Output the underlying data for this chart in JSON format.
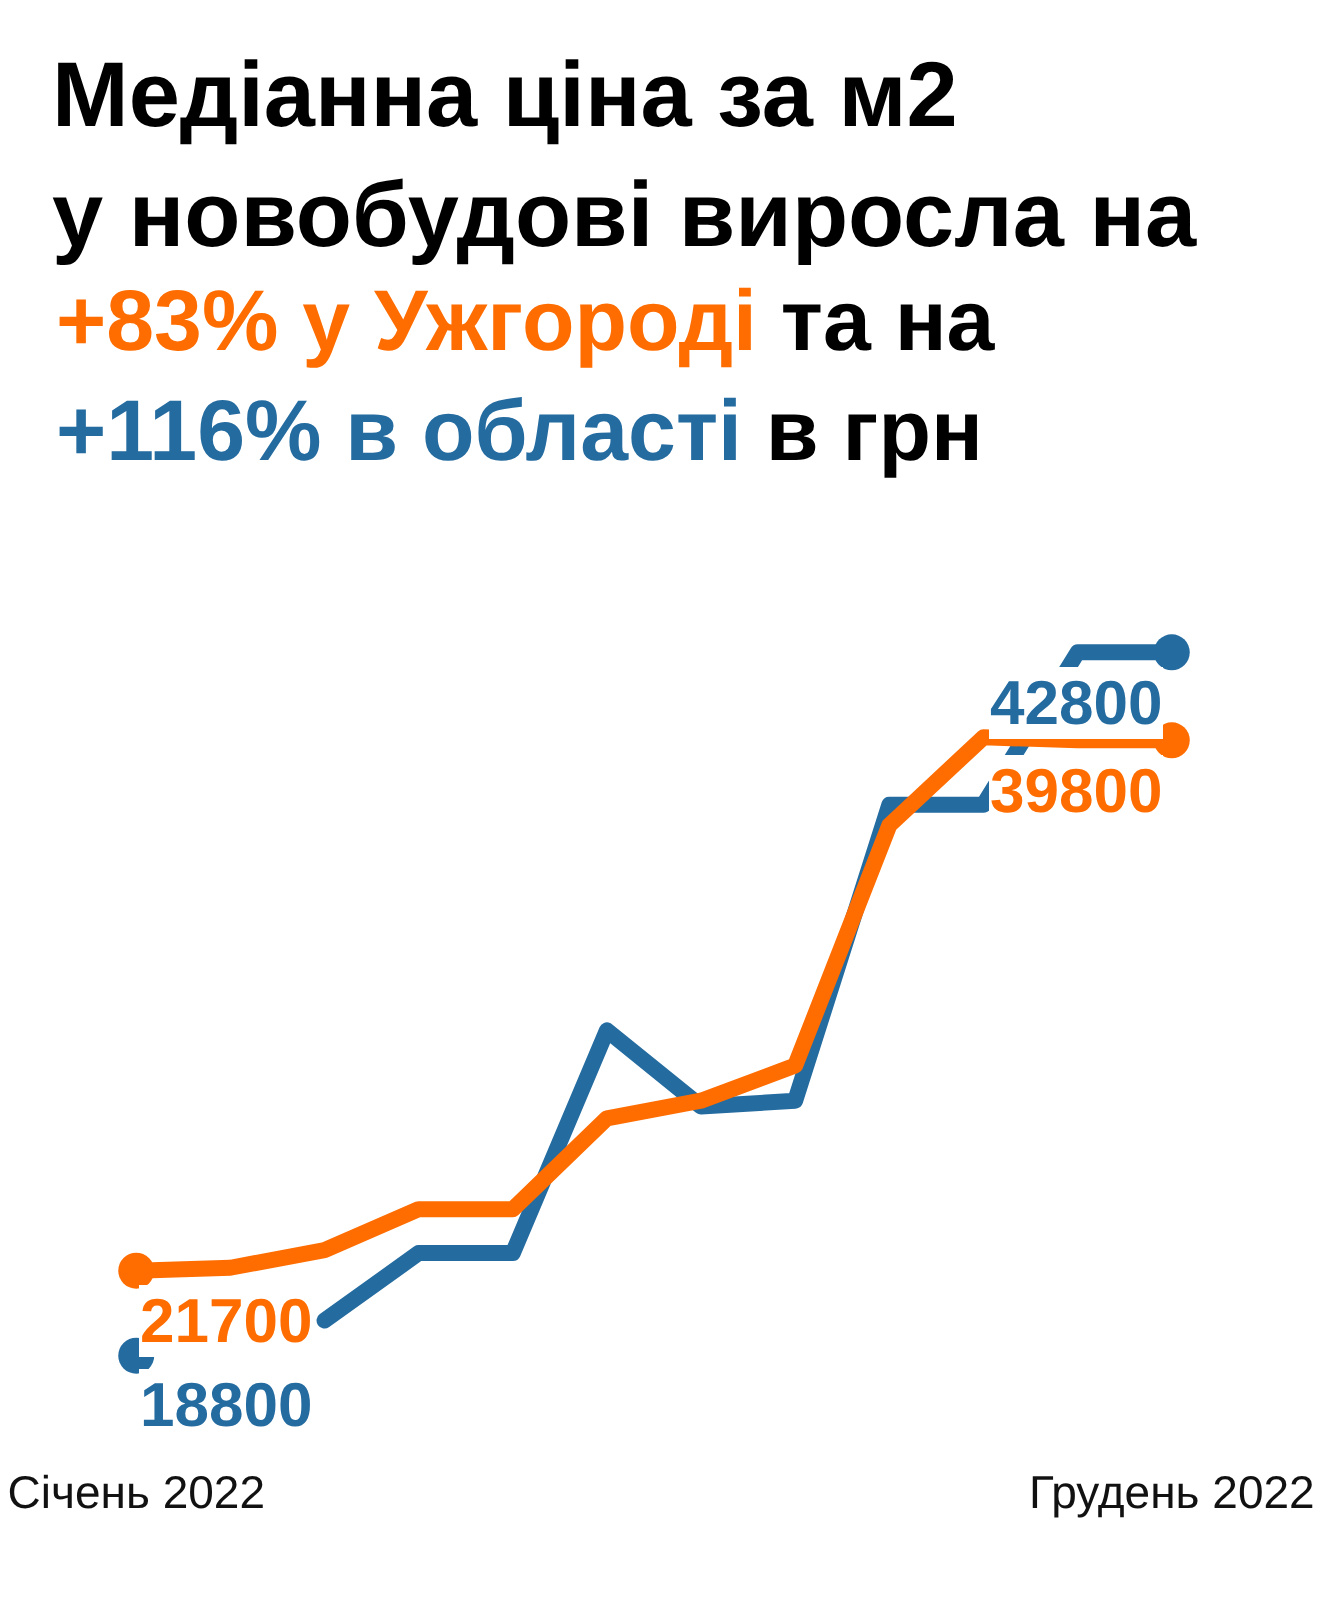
{
  "chart_data": {
    "type": "line",
    "title": "Медіанна ціна за м2\nу новобудові виросла на",
    "annotations": [
      "та на",
      "в грн"
    ],
    "categories": [
      "Січень 2022",
      null,
      null,
      null,
      null,
      null,
      null,
      null,
      null,
      null,
      null,
      "Грудень 2022"
    ],
    "series": [
      {
        "name": "+83% у Ужгороді",
        "color": "#ff6d00",
        "values": [
          21700,
          21800,
          22400,
          23800,
          23800,
          26900,
          27500,
          28700,
          36900,
          39900,
          39800,
          39800
        ],
        "value_labels": [
          "21700",
          null,
          null,
          null,
          null,
          null,
          null,
          null,
          null,
          null,
          null,
          "39800"
        ]
      },
      {
        "name": "+116% в області",
        "color": "#246ba0",
        "values": [
          18800,
          null,
          20000,
          22300,
          22300,
          29900,
          27300,
          27500,
          37600,
          37600,
          42800,
          42800
        ],
        "value_labels": [
          "18800",
          null,
          null,
          null,
          null,
          null,
          null,
          null,
          null,
          null,
          null,
          "42800"
        ]
      }
    ],
    "line_style": "solid"
  }
}
